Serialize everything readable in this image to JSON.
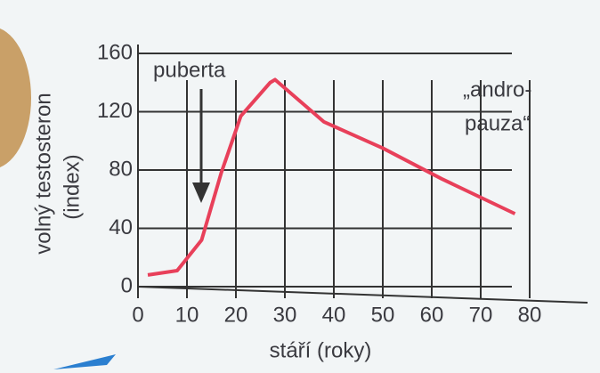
{
  "chart_data": {
    "type": "line",
    "ylabel": [
      "volný testosteron",
      "(index)"
    ],
    "xlabel": "stáří (roky)",
    "annotations": [
      "puberta",
      "„andro-",
      "pauza“"
    ],
    "x": [
      2,
      8,
      13,
      17,
      21,
      27,
      28,
      38,
      50,
      62,
      77
    ],
    "values": [
      8,
      11,
      32,
      78,
      117,
      140,
      142,
      113,
      95,
      74,
      50
    ],
    "color": "#e8405a",
    "xlim": [
      0,
      80
    ],
    "xticks": [
      0,
      10,
      20,
      30,
      40,
      50,
      60,
      70,
      80
    ],
    "ylim": [
      0,
      160
    ],
    "yticks": [
      0,
      40,
      80,
      120,
      160
    ],
    "grid": true
  }
}
